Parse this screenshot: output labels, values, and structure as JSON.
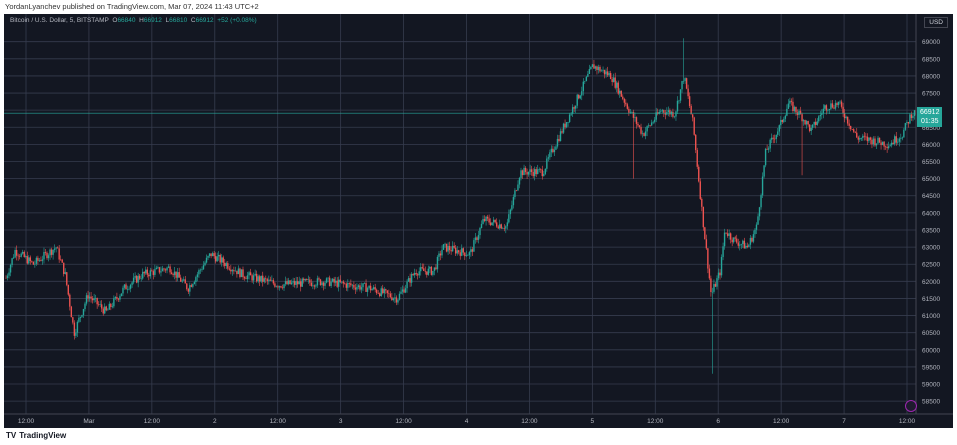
{
  "header": {
    "text": "YordanLyanchev published on TradingView.com, Mar 07, 2024 11:43 UTC+2"
  },
  "symbol": {
    "name": "Bitcoin / U.S. Dollar, 5, BITSTAMP",
    "open_label": "O",
    "open": "66840",
    "high_label": "H",
    "high": "66912",
    "low_label": "L",
    "low": "66810",
    "close_label": "C",
    "close": "66912",
    "change": "+52 (+0.08%)"
  },
  "currency": "USD",
  "last_price": {
    "price": "66912",
    "countdown": "01:35"
  },
  "footer": {
    "brand": "TradingView"
  },
  "colors": {
    "background": "#131722",
    "up": "#26a69a",
    "down": "#ef5350",
    "grid": "#363c4e",
    "price_line": "#26a69a"
  },
  "chart_data": {
    "type": "candlestick",
    "x_ticks": [
      "12:00",
      "Mar",
      "12:00",
      "2",
      "12:00",
      "3",
      "12:00",
      "4",
      "12:00",
      "5",
      "12:00",
      "6",
      "12:00",
      "7",
      "12:00"
    ],
    "y_ticks": [
      "69000",
      "68500",
      "68000",
      "67500",
      "67000",
      "66500",
      "66000",
      "65500",
      "65000",
      "64500",
      "64000",
      "63500",
      "63000",
      "62500",
      "62000",
      "61500",
      "61000",
      "60500",
      "60000",
      "59500",
      "59000",
      "58500"
    ],
    "ylim": [
      58300,
      69400
    ],
    "grid": true,
    "last_value": 66912,
    "path_knots": [
      [
        0.0,
        62100
      ],
      [
        0.01,
        62900
      ],
      [
        0.03,
        62500
      ],
      [
        0.055,
        63000
      ],
      [
        0.065,
        62200
      ],
      [
        0.075,
        60500
      ],
      [
        0.09,
        61600
      ],
      [
        0.11,
        61100
      ],
      [
        0.13,
        61800
      ],
      [
        0.15,
        62200
      ],
      [
        0.18,
        62400
      ],
      [
        0.2,
        61800
      ],
      [
        0.225,
        62800
      ],
      [
        0.26,
        62200
      ],
      [
        0.3,
        61900
      ],
      [
        0.35,
        62000
      ],
      [
        0.4,
        61800
      ],
      [
        0.43,
        61500
      ],
      [
        0.45,
        62300
      ],
      [
        0.47,
        62300
      ],
      [
        0.48,
        63000
      ],
      [
        0.51,
        62800
      ],
      [
        0.525,
        63800
      ],
      [
        0.55,
        63600
      ],
      [
        0.565,
        65200
      ],
      [
        0.59,
        65200
      ],
      [
        0.6,
        65800
      ],
      [
        0.62,
        66900
      ],
      [
        0.645,
        68300
      ],
      [
        0.665,
        68000
      ],
      [
        0.685,
        67000
      ],
      [
        0.7,
        66300
      ],
      [
        0.72,
        67000
      ],
      [
        0.735,
        66900
      ],
      [
        0.745,
        68000
      ],
      [
        0.755,
        66600
      ],
      [
        0.765,
        64000
      ],
      [
        0.775,
        61600
      ],
      [
        0.785,
        62300
      ],
      [
        0.79,
        63500
      ],
      [
        0.8,
        63200
      ],
      [
        0.815,
        63000
      ],
      [
        0.825,
        63600
      ],
      [
        0.835,
        65800
      ],
      [
        0.85,
        66500
      ],
      [
        0.86,
        67200
      ],
      [
        0.875,
        66800
      ],
      [
        0.885,
        66400
      ],
      [
        0.9,
        67100
      ],
      [
        0.915,
        67200
      ],
      [
        0.925,
        66700
      ],
      [
        0.935,
        66200
      ],
      [
        0.955,
        66100
      ],
      [
        0.97,
        66000
      ],
      [
        0.985,
        66300
      ],
      [
        0.995,
        66900
      ],
      [
        1.0,
        66912
      ]
    ],
    "spikes": [
      {
        "x": 0.075,
        "low": 60300
      },
      {
        "x": 0.689,
        "low": 65000
      },
      {
        "x": 0.745,
        "high": 69100
      },
      {
        "x": 0.776,
        "low": 59300
      },
      {
        "x": 0.875,
        "low": 65100
      }
    ]
  }
}
